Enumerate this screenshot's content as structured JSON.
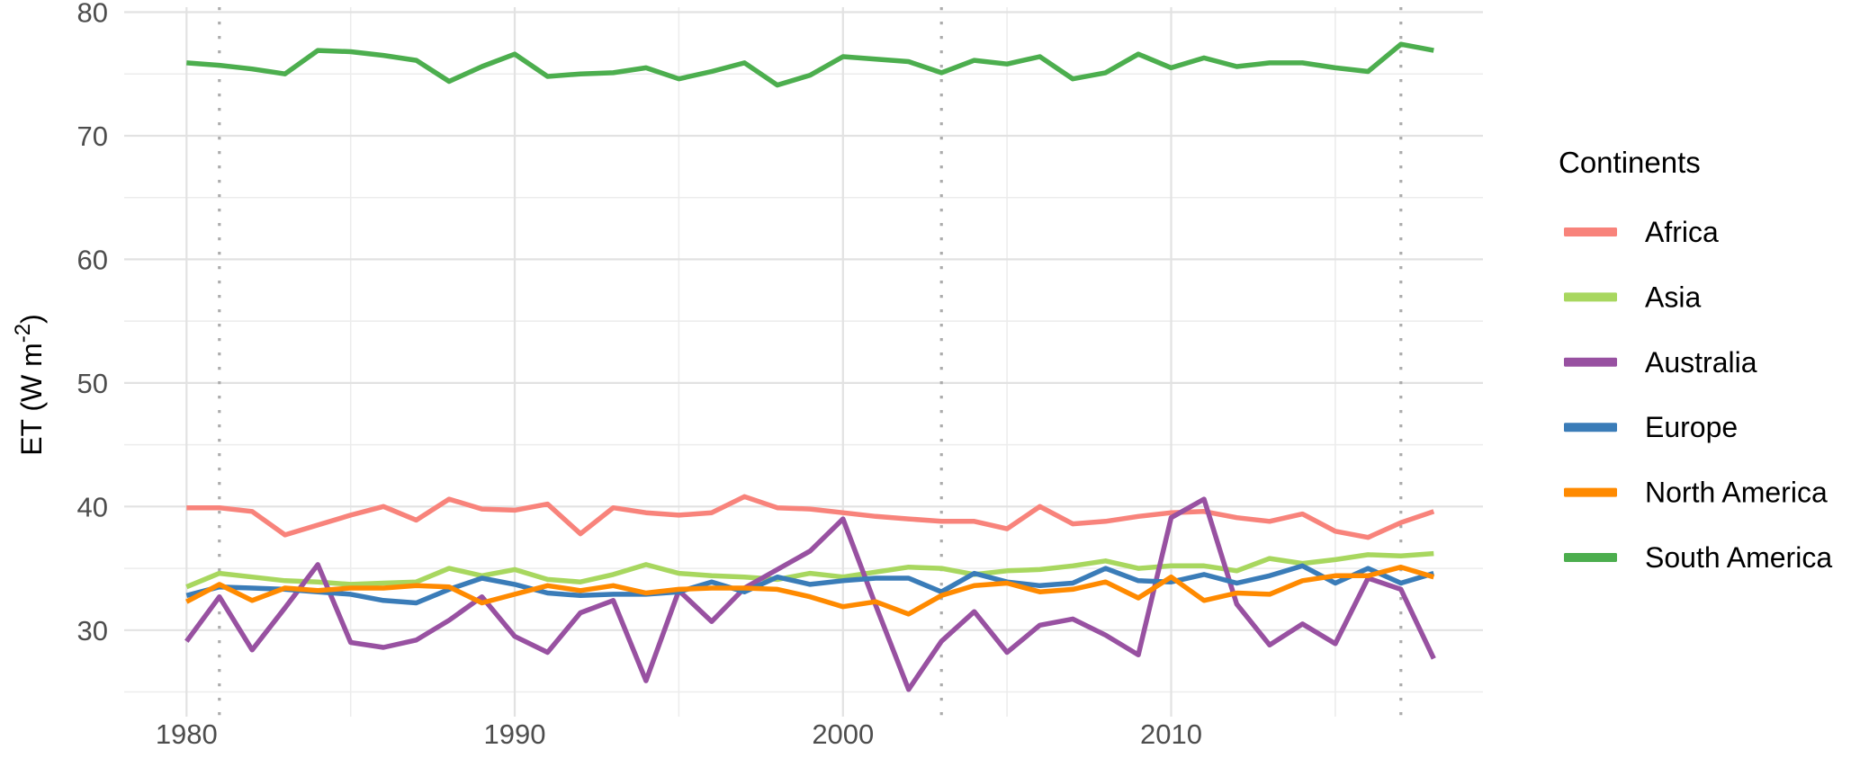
{
  "figure": {
    "background": "#FFFFFF",
    "description": "Annual mean evapotranspiration (ET) time series per continent, 1980-2018"
  },
  "chart_data": {
    "type": "line",
    "title": "",
    "xlabel": "",
    "ylabel": "ET (W m-2)",
    "ylabel_parts": {
      "pre": "ET (W m",
      "sup": "-2",
      "post": ")"
    },
    "x": [
      1980,
      1981,
      1982,
      1983,
      1984,
      1985,
      1986,
      1987,
      1988,
      1989,
      1990,
      1991,
      1992,
      1993,
      1994,
      1995,
      1996,
      1997,
      1998,
      1999,
      2000,
      2001,
      2002,
      2003,
      2004,
      2005,
      2006,
      2007,
      2008,
      2009,
      2010,
      2011,
      2012,
      2013,
      2014,
      2015,
      2016,
      2017,
      2018
    ],
    "x_ticks": [
      1980,
      1990,
      2000,
      2010
    ],
    "x_minor_gridlines": [
      1985,
      1995,
      2005,
      2015
    ],
    "y_ticks": [
      30,
      40,
      50,
      60,
      70,
      80
    ],
    "y_minor_gridlines": [
      25,
      35,
      45,
      55,
      65,
      75
    ],
    "xlim": [
      1978.1,
      2019.5
    ],
    "ylim": [
      23.0,
      80.4
    ],
    "grid": "major+minor",
    "vline_years": [
      1981,
      2003,
      2017
    ],
    "vline_style": {
      "pattern": "dotted",
      "color": "#ACACAC"
    },
    "legend_position": "right",
    "legend_title": "Continents",
    "series": [
      {
        "name": "Africa",
        "color": "#F8837B",
        "values": [
          39.9,
          39.9,
          39.6,
          37.7,
          38.5,
          39.3,
          40.0,
          38.9,
          40.6,
          39.8,
          39.7,
          40.2,
          37.8,
          39.9,
          39.5,
          39.3,
          39.5,
          40.8,
          39.9,
          39.8,
          39.5,
          39.2,
          39.0,
          38.8,
          38.8,
          38.2,
          40.0,
          38.6,
          38.8,
          39.2,
          39.5,
          39.6,
          39.1,
          38.8,
          39.4,
          38.0,
          37.5,
          38.7,
          39.6
        ]
      },
      {
        "name": "Asia",
        "color": "#A8D75F",
        "values": [
          33.5,
          34.6,
          34.3,
          34.0,
          33.9,
          33.7,
          33.8,
          33.9,
          35.0,
          34.4,
          34.9,
          34.1,
          33.9,
          34.5,
          35.3,
          34.6,
          34.4,
          34.3,
          34.1,
          34.6,
          34.3,
          34.7,
          35.1,
          35.0,
          34.5,
          34.8,
          34.9,
          35.2,
          35.6,
          35.0,
          35.2,
          35.2,
          34.8,
          35.8,
          35.4,
          35.7,
          36.1,
          36.0,
          36.2
        ]
      },
      {
        "name": "Australia",
        "color": "#9851A1",
        "values": [
          29.1,
          32.7,
          28.4,
          31.8,
          35.3,
          29.0,
          28.6,
          29.2,
          30.8,
          32.7,
          29.5,
          28.2,
          31.4,
          32.4,
          25.9,
          33.2,
          30.7,
          33.4,
          34.9,
          36.4,
          39.0,
          32.0,
          25.2,
          29.1,
          31.5,
          28.2,
          30.4,
          30.9,
          29.6,
          28.0,
          39.1,
          40.6,
          32.1,
          28.8,
          30.5,
          28.9,
          34.2,
          33.3,
          27.7
        ]
      },
      {
        "name": "Europe",
        "color": "#3A7CB8",
        "values": [
          32.8,
          33.5,
          33.4,
          33.3,
          33.1,
          32.9,
          32.4,
          32.2,
          33.3,
          34.2,
          33.7,
          33.0,
          32.8,
          32.9,
          32.9,
          33.1,
          33.9,
          33.1,
          34.3,
          33.7,
          34.0,
          34.2,
          34.2,
          33.1,
          34.6,
          33.9,
          33.6,
          33.8,
          35.0,
          34.0,
          33.9,
          34.5,
          33.8,
          34.4,
          35.2,
          33.8,
          35.0,
          33.8,
          34.6
        ]
      },
      {
        "name": "North America",
        "color": "#FF8A00",
        "values": [
          32.3,
          33.7,
          32.4,
          33.4,
          33.2,
          33.4,
          33.4,
          33.6,
          33.5,
          32.2,
          32.9,
          33.6,
          33.2,
          33.6,
          33.0,
          33.3,
          33.4,
          33.4,
          33.3,
          32.7,
          31.9,
          32.3,
          31.3,
          32.8,
          33.6,
          33.8,
          33.1,
          33.3,
          33.9,
          32.6,
          34.3,
          32.4,
          33.0,
          32.9,
          34.0,
          34.4,
          34.4,
          35.1,
          34.3
        ]
      },
      {
        "name": "South America",
        "color": "#4CAE4E",
        "values": [
          75.9,
          75.7,
          75.4,
          75.0,
          76.9,
          76.8,
          76.5,
          76.1,
          74.4,
          75.6,
          76.6,
          74.8,
          75.0,
          75.1,
          75.5,
          74.6,
          75.2,
          75.9,
          74.1,
          74.9,
          76.4,
          76.2,
          76.0,
          75.1,
          76.1,
          75.8,
          76.4,
          74.6,
          75.1,
          76.6,
          75.5,
          76.3,
          75.6,
          75.9,
          75.9,
          75.5,
          75.2,
          77.4,
          76.9
        ]
      }
    ]
  },
  "style_colors": {
    "grid_major": "#E2E2E2",
    "grid_minor": "#ECECEC",
    "tick_label": "#4D4D4D",
    "axis_title": "#000000",
    "legend_text": "#000000"
  }
}
